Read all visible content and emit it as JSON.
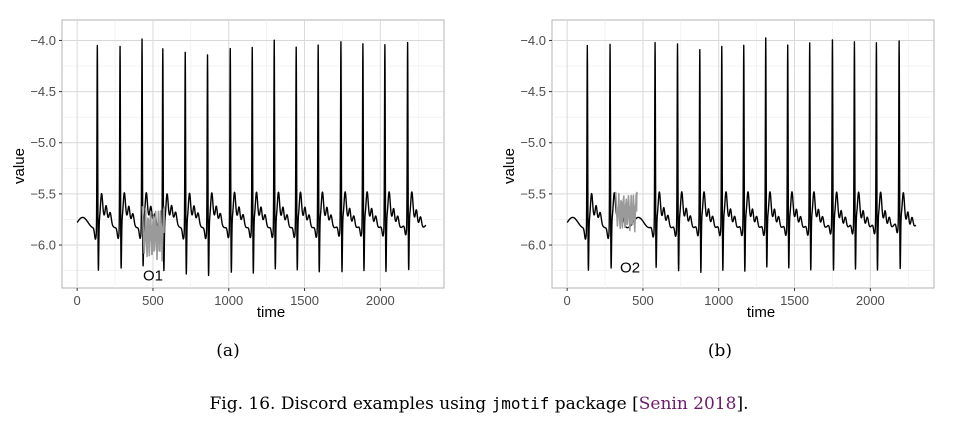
{
  "chart_data": [
    {
      "type": "line",
      "panel_label": "(a)",
      "xlabel": "time",
      "ylabel": "value",
      "xlim": [
        -100,
        2420
      ],
      "ylim": [
        -6.42,
        -3.8
      ],
      "xticks": [
        0,
        500,
        1000,
        1500,
        2000
      ],
      "yticks": [
        -4.0,
        -4.5,
        -5.0,
        -5.5,
        -6.0
      ],
      "xtick_labels": [
        "0",
        "500",
        "1000",
        "1500",
        "2000"
      ],
      "ytick_labels": [
        "−4.0",
        "−4.5",
        "−5.0",
        "−5.5",
        "−6.0"
      ],
      "grid": true,
      "series_length": 2300,
      "baseline": -5.78,
      "peaks": [
        {
          "x": 133,
          "y": -4.0,
          "min": -6.25
        },
        {
          "x": 283,
          "y": -4.02,
          "min": -6.24
        },
        {
          "x": 428,
          "y": -3.95,
          "min": -6.22
        },
        {
          "x": 565,
          "y": -4.03,
          "min": -6.25
        },
        {
          "x": 713,
          "y": -4.07,
          "min": -6.29
        },
        {
          "x": 860,
          "y": -4.1,
          "min": -6.31
        },
        {
          "x": 1010,
          "y": -4.05,
          "min": -6.29
        },
        {
          "x": 1155,
          "y": -4.04,
          "min": -6.3
        },
        {
          "x": 1300,
          "y": -3.97,
          "min": -6.26
        },
        {
          "x": 1445,
          "y": -4.04,
          "min": -6.27
        },
        {
          "x": 1590,
          "y": -4.02,
          "min": -6.29
        },
        {
          "x": 1740,
          "y": -4.0,
          "min": -6.3
        },
        {
          "x": 1885,
          "y": -4.02,
          "min": -6.29
        },
        {
          "x": 2030,
          "y": -4.03,
          "min": -6.3
        },
        {
          "x": 2180,
          "y": -4.02,
          "min": -6.29
        }
      ],
      "discord": {
        "label": "O1",
        "x_start": 430,
        "x_end": 575,
        "min": -6.17,
        "max": -5.62
      },
      "annotation": {
        "text": "O1",
        "x": 500,
        "y": -6.3
      }
    },
    {
      "type": "line",
      "panel_label": "(b)",
      "xlabel": "time",
      "ylabel": "value",
      "xlim": [
        -100,
        2420
      ],
      "ylim": [
        -6.42,
        -3.8
      ],
      "xticks": [
        0,
        500,
        1000,
        1500,
        2000
      ],
      "yticks": [
        -4.0,
        -4.5,
        -5.0,
        -5.5,
        -6.0
      ],
      "xtick_labels": [
        "0",
        "500",
        "1000",
        "1500",
        "2000"
      ],
      "ytick_labels": [
        "−4.0",
        "−4.5",
        "−5.0",
        "−5.5",
        "−6.0"
      ],
      "grid": true,
      "series_length": 2300,
      "baseline": -5.78,
      "peaks": [
        {
          "x": 133,
          "y": -4.0,
          "min": -6.25
        },
        {
          "x": 283,
          "y": -4.0,
          "min": -6.24
        },
        {
          "x": 580,
          "y": -4.0,
          "min": -6.25
        },
        {
          "x": 728,
          "y": -4.02,
          "min": -6.29
        },
        {
          "x": 875,
          "y": -4.08,
          "min": -6.31
        },
        {
          "x": 1020,
          "y": -4.05,
          "min": -6.29
        },
        {
          "x": 1165,
          "y": -4.04,
          "min": -6.3
        },
        {
          "x": 1310,
          "y": -3.97,
          "min": -6.26
        },
        {
          "x": 1455,
          "y": -4.04,
          "min": -6.27
        },
        {
          "x": 1600,
          "y": -4.02,
          "min": -6.29
        },
        {
          "x": 1750,
          "y": -4.0,
          "min": -6.3
        },
        {
          "x": 1895,
          "y": -4.02,
          "min": -6.29
        },
        {
          "x": 2040,
          "y": -4.03,
          "min": -6.3
        },
        {
          "x": 2190,
          "y": -4.02,
          "min": -6.29
        }
      ],
      "discord": {
        "label": "O2",
        "x_start": 320,
        "x_end": 460,
        "min": -5.88,
        "max": -5.48
      },
      "annotation": {
        "text": "O2",
        "x": 415,
        "y": -6.22
      }
    }
  ],
  "caption": {
    "prefix": "Fig. 16.  Discord examples using ",
    "code": "jmotif",
    "middle": " package [",
    "citation": "Senin 2018",
    "suffix": "]."
  },
  "colors": {
    "series": "#000000",
    "discord": "#9a9a9a",
    "grid": "#d9d9d9",
    "panel_border": "#b3b3b3",
    "citation": "#6b1d6b"
  }
}
